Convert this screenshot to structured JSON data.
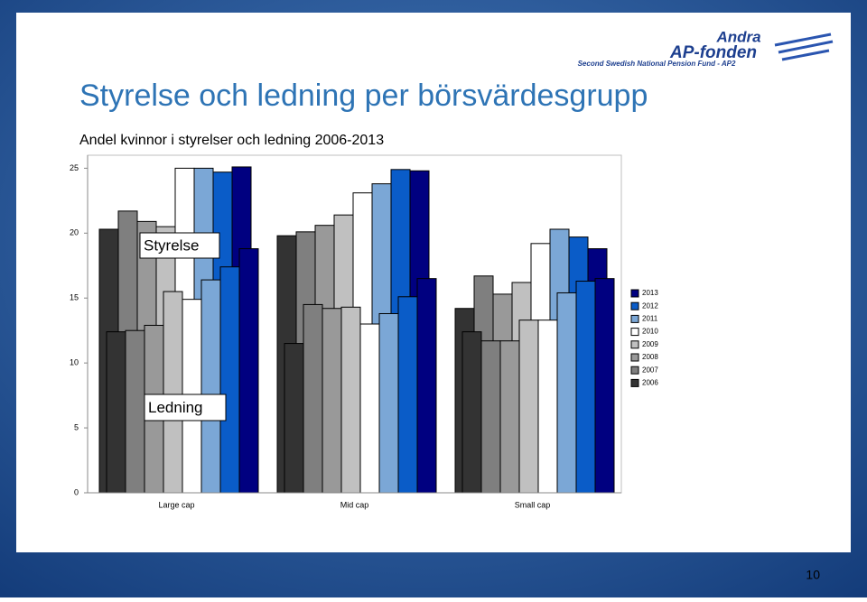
{
  "slide": {
    "title": "Styrelse och ledning per börsvärdesgrupp",
    "logo_line_1": "Andra",
    "logo_line_2": "AP-fonden",
    "logo_tagline": "Second Swedish National Pension Fund - AP2",
    "page_number": "10"
  },
  "chart_data": {
    "type": "bar",
    "title": "Andel kvinnor i styrelser och ledning 2006-2013",
    "categories": [
      "Large cap",
      "Mid cap",
      "Small cap"
    ],
    "series": [
      {
        "name": "2006",
        "color": "#333333"
      },
      {
        "name": "2007",
        "color": "#7f7f7f"
      },
      {
        "name": "2008",
        "color": "#999999"
      },
      {
        "name": "2009",
        "color": "#c0c0c0"
      },
      {
        "name": "2010",
        "color": "#ffffff"
      },
      {
        "name": "2011",
        "color": "#7ba7d6"
      },
      {
        "name": "2012",
        "color": "#0a5cc8"
      },
      {
        "name": "2013",
        "color": "#000080"
      }
    ],
    "groups": [
      {
        "label": "Styrelse",
        "values": [
          [
            20.3,
            21.7,
            20.9,
            20.5,
            25.0,
            25.0,
            24.7,
            25.1
          ],
          [
            19.8,
            20.1,
            20.6,
            21.4,
            23.1,
            23.8,
            24.9,
            24.8
          ],
          [
            14.2,
            16.7,
            15.3,
            16.2,
            19.2,
            20.3,
            19.7,
            18.8
          ]
        ]
      },
      {
        "label": "Ledning",
        "values": [
          [
            12.4,
            12.5,
            12.9,
            15.5,
            14.9,
            16.4,
            17.4,
            18.8
          ],
          [
            11.5,
            14.5,
            14.2,
            14.3,
            13.0,
            13.8,
            15.1,
            16.5
          ],
          [
            12.4,
            11.7,
            11.7,
            13.3,
            13.3,
            15.4,
            16.3,
            16.5
          ]
        ]
      }
    ],
    "ylim": [
      0,
      26
    ],
    "yticks": [
      0,
      5,
      10,
      15,
      20,
      25
    ]
  }
}
